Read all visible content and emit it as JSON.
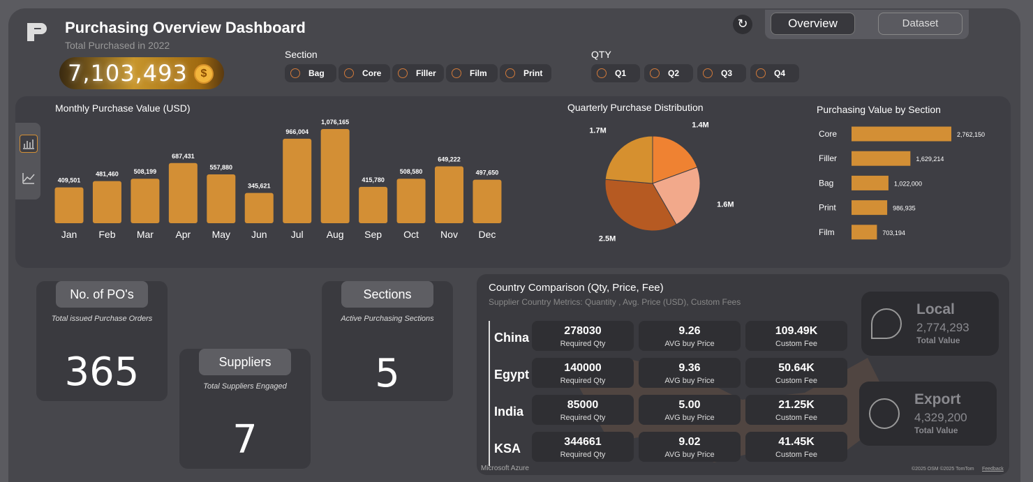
{
  "header": {
    "title": "Purchasing Overview Dashboard",
    "subtitle": "Total Purchased in 2022",
    "total": "7,103,493",
    "currency_symbol": "$"
  },
  "nav": [
    "Overview",
    "Dataset"
  ],
  "filters": {
    "section": {
      "label": "Section",
      "options": [
        "Bag",
        "Core",
        "Filler",
        "Film",
        "Print"
      ]
    },
    "qty": {
      "label": "QTY",
      "options": [
        "Q1",
        "Q2",
        "Q3",
        "Q4"
      ]
    }
  },
  "chart_data": [
    {
      "type": "bar",
      "title": "Monthly Purchase Value (USD)",
      "color": "#d38f35",
      "categories": [
        "Jan",
        "Feb",
        "Mar",
        "Apr",
        "May",
        "Jun",
        "Jul",
        "Aug",
        "Sep",
        "Oct",
        "Nov",
        "Dec"
      ],
      "values": [
        409501,
        481460,
        508199,
        687431,
        557880,
        345621,
        966004,
        1076165,
        415780,
        508580,
        649222,
        497650
      ],
      "value_labels": [
        "409,501",
        "481,460",
        "508,199",
        "687,431",
        "557,880",
        "345,621",
        "966,004",
        "1,076,165",
        "415,780",
        "508,580",
        "649,222",
        "497,650"
      ]
    },
    {
      "type": "pie",
      "title": "Quarterly Purchase Distribution",
      "values": [
        1.4,
        1.6,
        2.5,
        1.7
      ],
      "value_labels": [
        "1.4M",
        "1.6M",
        "2.5M",
        "1.7M"
      ],
      "colors": [
        "#ef8232",
        "#f2a98b",
        "#b65a22",
        "#d6902f"
      ]
    },
    {
      "type": "barh",
      "title": "Purchasing Value by Section",
      "color": "#d38f35",
      "categories": [
        "Core",
        "Filler",
        "Bag",
        "Print",
        "Film"
      ],
      "values": [
        2762150,
        1629214,
        1022000,
        986935,
        703194
      ],
      "value_labels": [
        "2,762,150",
        "1,629,214",
        "1,022,000",
        "986,935",
        "703,194"
      ]
    }
  ],
  "kpis": [
    {
      "title": "No. of PO's",
      "subtitle": "Total issued Purchase Orders",
      "value": "365"
    },
    {
      "title": "Suppliers",
      "subtitle": "Total Suppliers Engaged",
      "value": "7"
    },
    {
      "title": "Sections",
      "subtitle": "Active Purchasing Sections",
      "value": "5"
    }
  ],
  "country": {
    "title": "Country Comparison (Qty, Price, Fee)",
    "subtitle": "Supplier Country Metrics: Quantity , Avg. Price (USD), Custom Fees",
    "metric_labels": [
      "Required Qty",
      "AVG buy Price",
      "Custom Fee"
    ],
    "rows": [
      [
        "China",
        "278030",
        "9.26",
        "109.49K"
      ],
      [
        "Egypt",
        "140000",
        "9.36",
        "50.64K"
      ],
      [
        "India",
        "85000",
        "5.00",
        "21.25K"
      ],
      [
        "KSA",
        "344661",
        "9.02",
        "41.45K"
      ]
    ],
    "attribution": "Microsoft Azure",
    "copyright": "©2025 OSM ©2025 TomTom",
    "feedback": "Feedback"
  },
  "totals": [
    {
      "title": "Local",
      "value": "2,774,293",
      "label": "Total Value"
    },
    {
      "title": "Export",
      "value": "4,329,200",
      "label": "Total Value"
    }
  ]
}
